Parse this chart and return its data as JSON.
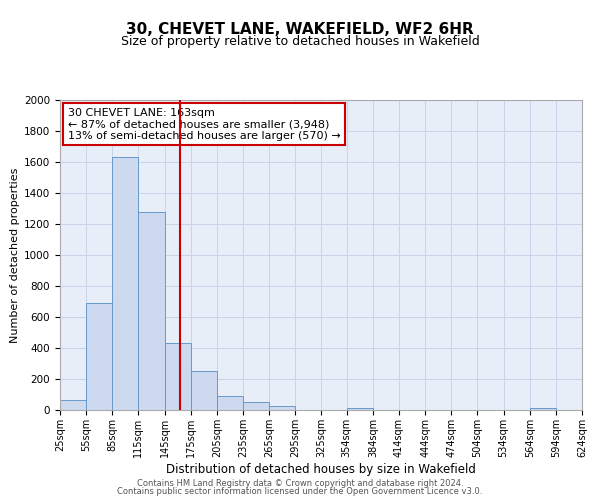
{
  "title": "30, CHEVET LANE, WAKEFIELD, WF2 6HR",
  "subtitle": "Size of property relative to detached houses in Wakefield",
  "xlabel": "Distribution of detached houses by size in Wakefield",
  "ylabel": "Number of detached properties",
  "property_size": 163,
  "bar_edges": [
    25,
    55,
    85,
    115,
    145,
    175,
    205,
    235,
    265,
    295,
    325,
    354,
    384,
    414,
    444,
    474,
    504,
    534,
    564,
    594,
    624
  ],
  "bar_heights": [
    65,
    690,
    1630,
    1280,
    435,
    250,
    90,
    52,
    28,
    0,
    0,
    15,
    0,
    0,
    0,
    0,
    0,
    0,
    15,
    0,
    0
  ],
  "bar_color": "#ccd9ee",
  "bar_edge_color": "#6699cc",
  "red_line_color": "#cc0000",
  "annotation_line1": "30 CHEVET LANE: 163sqm",
  "annotation_line2": "← 87% of detached houses are smaller (3,948)",
  "annotation_line3": "13% of semi-detached houses are larger (570) →",
  "annotation_box_color": "#ffffff",
  "annotation_box_edge": "#cc0000",
  "ylim": [
    0,
    2000
  ],
  "yticks": [
    0,
    200,
    400,
    600,
    800,
    1000,
    1200,
    1400,
    1600,
    1800,
    2000
  ],
  "tick_labels": [
    "25sqm",
    "55sqm",
    "85sqm",
    "115sqm",
    "145sqm",
    "175sqm",
    "205sqm",
    "235sqm",
    "265sqm",
    "295sqm",
    "325sqm",
    "354sqm",
    "384sqm",
    "414sqm",
    "444sqm",
    "474sqm",
    "504sqm",
    "534sqm",
    "564sqm",
    "594sqm",
    "624sqm"
  ],
  "grid_color": "#c8d4e8",
  "background_color": "#e8eef8",
  "footer_line1": "Contains HM Land Registry data © Crown copyright and database right 2024.",
  "footer_line2": "Contains public sector information licensed under the Open Government Licence v3.0.",
  "title_fontsize": 11,
  "subtitle_fontsize": 9,
  "xlabel_fontsize": 8.5,
  "ylabel_fontsize": 8,
  "annotation_fontsize": 8,
  "tick_fontsize": 7,
  "ytick_fontsize": 7.5,
  "footer_fontsize": 6
}
